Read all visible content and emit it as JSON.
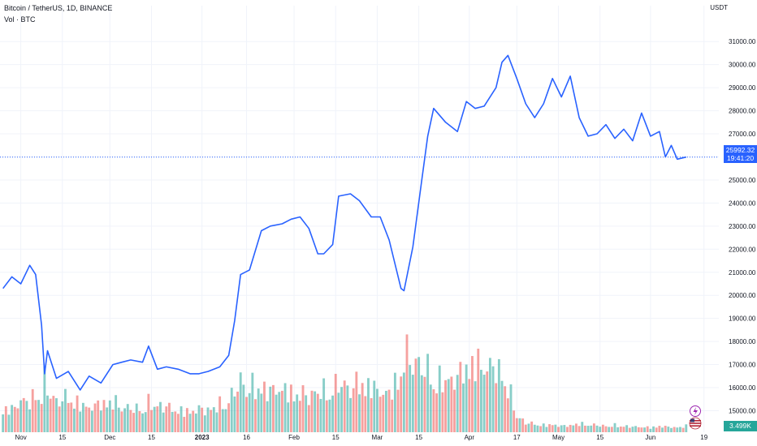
{
  "legend": {
    "symbol": "Bitcoin / TetherUS, 1D, BINANCE",
    "volume": "Vol · BTC"
  },
  "price_axis_unit": "USDT",
  "last_price": {
    "value": "25992.32",
    "countdown": "19:41:20"
  },
  "volume_badge": "3.499K",
  "colors": {
    "line": "#2962ff",
    "vol_up": "#26a69a",
    "vol_down": "#ef5350",
    "badge": "#2962ff",
    "grid": "#f0f3fa"
  },
  "chart_data": {
    "type": "line",
    "x_ticks": [
      "Nov",
      "15",
      "Dec",
      "15",
      "2023",
      "16",
      "Feb",
      "15",
      "Mar",
      "15",
      "Apr",
      "17",
      "May",
      "15",
      "Jun",
      "19"
    ],
    "y_ticks": [
      15000,
      16000,
      17000,
      18000,
      19000,
      20000,
      21000,
      22000,
      23000,
      24000,
      25000,
      26000,
      27000,
      28000,
      29000,
      30000,
      31000
    ],
    "ylim": [
      14700,
      31500
    ],
    "grid": true,
    "legend_position": "top-left",
    "x": [
      "2022-10-26",
      "2022-10-29",
      "2022-11-01",
      "2022-11-04",
      "2022-11-06",
      "2022-11-08",
      "2022-11-09",
      "2022-11-10",
      "2022-11-13",
      "2022-11-17",
      "2022-11-21",
      "2022-11-24",
      "2022-11-28",
      "2022-12-02",
      "2022-12-05",
      "2022-12-08",
      "2022-12-12",
      "2022-12-14",
      "2022-12-17",
      "2022-12-20",
      "2022-12-24",
      "2022-12-28",
      "2022-12-31",
      "2023-01-03",
      "2023-01-07",
      "2023-01-10",
      "2023-01-12",
      "2023-01-14",
      "2023-01-17",
      "2023-01-21",
      "2023-01-24",
      "2023-01-28",
      "2023-01-31",
      "2023-02-03",
      "2023-02-06",
      "2023-02-09",
      "2023-02-11",
      "2023-02-14",
      "2023-02-16",
      "2023-02-20",
      "2023-02-23",
      "2023-02-27",
      "2023-03-02",
      "2023-03-05",
      "2023-03-09",
      "2023-03-10",
      "2023-03-13",
      "2023-03-16",
      "2023-03-18",
      "2023-03-20",
      "2023-03-24",
      "2023-03-28",
      "2023-03-31",
      "2023-04-03",
      "2023-04-06",
      "2023-04-10",
      "2023-04-12",
      "2023-04-14",
      "2023-04-17",
      "2023-04-20",
      "2023-04-23",
      "2023-04-26",
      "2023-04-29",
      "2023-05-02",
      "2023-05-05",
      "2023-05-08",
      "2023-05-11",
      "2023-05-14",
      "2023-05-17",
      "2023-05-20",
      "2023-05-23",
      "2023-05-26",
      "2023-05-29",
      "2023-06-01",
      "2023-06-04",
      "2023-06-06",
      "2023-06-08",
      "2023-06-10",
      "2023-06-13"
    ],
    "series": [
      {
        "values": [
          20300,
          20800,
          20500,
          21300,
          20900,
          18700,
          16600,
          17600,
          16400,
          16700,
          15900,
          16500,
          16200,
          17000,
          17100,
          17200,
          17100,
          17800,
          16800,
          16900,
          16800,
          16600,
          16600,
          16700,
          16900,
          17400,
          18900,
          20900,
          21100,
          22800,
          23000,
          23100,
          23300,
          23400,
          22900,
          21800,
          21800,
          22200,
          24300,
          24400,
          24100,
          23400,
          23400,
          22400,
          20300,
          20200,
          22100,
          25000,
          26900,
          28100,
          27500,
          27100,
          28400,
          28100,
          28200,
          29000,
          30100,
          30400,
          29400,
          28300,
          27700,
          28300,
          29400,
          28600,
          29500,
          27700,
          26900,
          27000,
          27400,
          26800,
          27200,
          26700,
          27900,
          26900,
          27100,
          26000,
          26500,
          25900,
          25992
        ]
      }
    ],
    "volume": {
      "approximate": true,
      "values": [
        160,
        145,
        210,
        190,
        260,
        240,
        330,
        280,
        200,
        230,
        180,
        160,
        185,
        200,
        170,
        150,
        155,
        190,
        175,
        165,
        140,
        135,
        150,
        145,
        180,
        210,
        260,
        330,
        300,
        290,
        270,
        280,
        260,
        250,
        240,
        265,
        270,
        290,
        310,
        295,
        320,
        300,
        260,
        250,
        390,
        500,
        480,
        420,
        400,
        350,
        330,
        360,
        420,
        450,
        430,
        410,
        380,
        300,
        110,
        60,
        55,
        45,
        50,
        40,
        45,
        55,
        50,
        45,
        40,
        45,
        40,
        35,
        35,
        30,
        40,
        35,
        35,
        30,
        40
      ]
    }
  }
}
